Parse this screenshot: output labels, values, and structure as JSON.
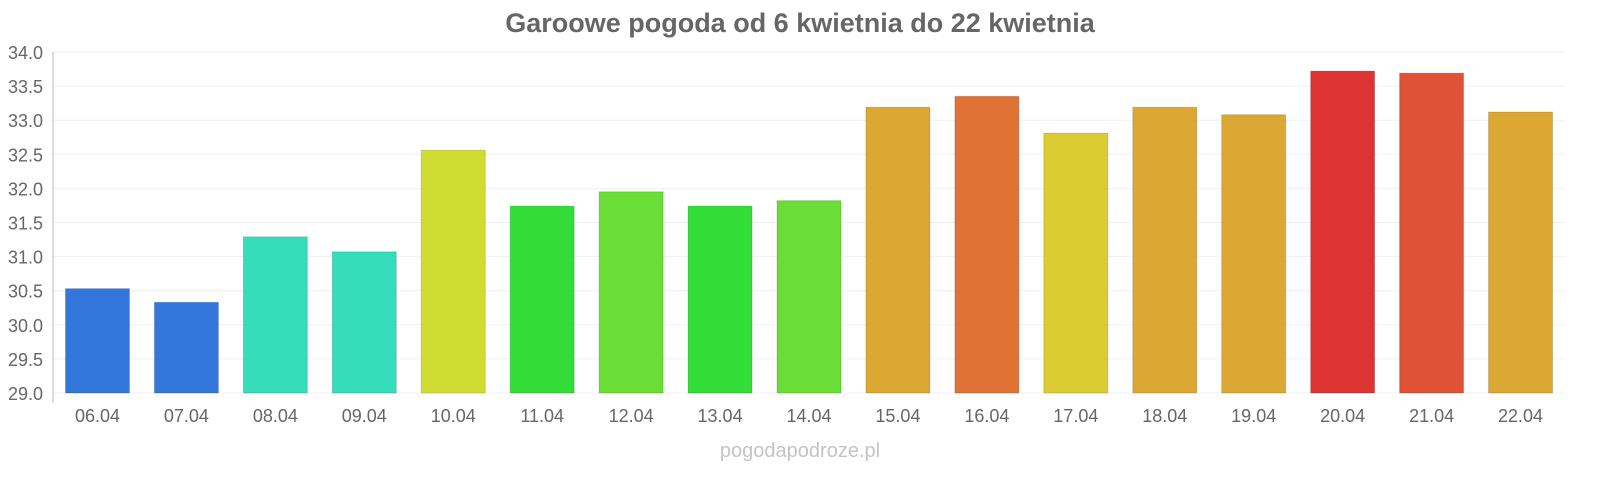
{
  "chart_data": {
    "type": "bar",
    "title": "Garoowe pogoda od 6 kwietnia do 22 kwietnia",
    "xlabel": "",
    "ylabel": "",
    "ylim": [
      29.0,
      34.0
    ],
    "yticks": [
      "29.0",
      "29.5",
      "30.0",
      "30.5",
      "31.0",
      "31.5",
      "32.0",
      "32.5",
      "33.0",
      "33.5",
      "34.0"
    ],
    "grid": true,
    "categories": [
      "06.04",
      "07.04",
      "08.04",
      "09.04",
      "10.04",
      "11.04",
      "12.04",
      "13.04",
      "14.04",
      "15.04",
      "16.04",
      "17.04",
      "18.04",
      "19.04",
      "20.04",
      "21.04",
      "22.04"
    ],
    "values": [
      30.53,
      30.33,
      31.29,
      31.07,
      32.56,
      31.74,
      31.95,
      31.74,
      31.82,
      33.19,
      33.35,
      32.81,
      33.19,
      33.08,
      33.72,
      33.69,
      33.12
    ],
    "colors": [
      "#3377dd",
      "#3377dd",
      "#35ddbb",
      "#35ddbb",
      "#cfdd33",
      "#33dd37",
      "#6ade37",
      "#33dd37",
      "#6ade37",
      "#dca833",
      "#df7234",
      "#dccc33",
      "#dca833",
      "#dca833",
      "#dd3333",
      "#df5236",
      "#dca833"
    ]
  },
  "footer": "pogodapodroze.pl"
}
